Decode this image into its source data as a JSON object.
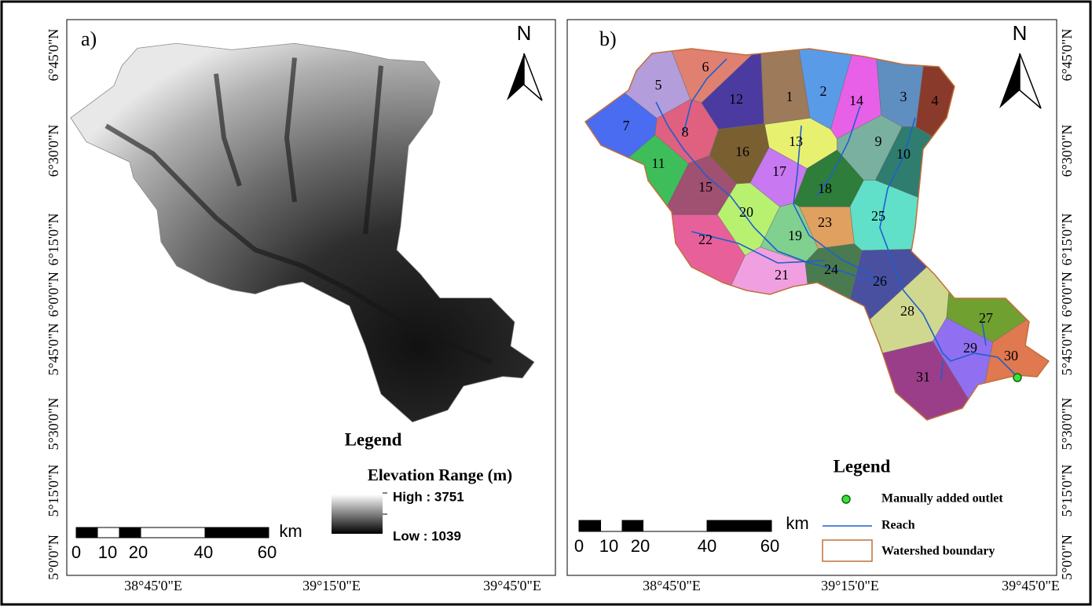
{
  "panels": [
    {
      "label": "a)",
      "north": "N",
      "lat_labels": [
        "6°45'0\"N",
        "6°30'0\"N",
        "6°15'0\"N",
        "6°0'0\"N",
        "5°45'0\"N",
        "5°30'0\"N",
        "5°15'0\"N",
        "5°0'0\"N"
      ],
      "lon_labels": [
        "38°45'0\"E",
        "39°15'0\"E",
        "39°45'0\"E"
      ],
      "legend": {
        "title": "Legend",
        "subtitle": "Elevation Range (m)",
        "high": "High : 3751",
        "low": "Low : 1039"
      },
      "scale": {
        "labels": [
          "0",
          "10",
          "20",
          "40",
          "60"
        ],
        "unit": "km"
      }
    },
    {
      "label": "b)",
      "north": "N",
      "lat_labels": [
        "6°45'0\"N",
        "6°30'0\"N",
        "6°15'0\"N",
        "6°0'0\"N",
        "5°45'0\"N",
        "5°30'0\"N",
        "5°15'0\"N",
        "5°0'0\"N"
      ],
      "lon_labels": [
        "38°45'0\"E",
        "39°15'0\"E",
        "39°45'0\"E"
      ],
      "subbasins": [
        "1",
        "2",
        "3",
        "4",
        "5",
        "6",
        "7",
        "8",
        "9",
        "10",
        "11",
        "12",
        "13",
        "14",
        "15",
        "16",
        "17",
        "18",
        "19",
        "20",
        "21",
        "22",
        "23",
        "24",
        "25",
        "26",
        "27",
        "28",
        "29",
        "30",
        "31"
      ],
      "legend": {
        "title": "Legend",
        "items": [
          "Manually added outlet",
          "Reach",
          "Watershed boundary"
        ]
      },
      "scale": {
        "labels": [
          "0",
          "10",
          "20",
          "40",
          "60"
        ],
        "unit": "km"
      }
    }
  ]
}
